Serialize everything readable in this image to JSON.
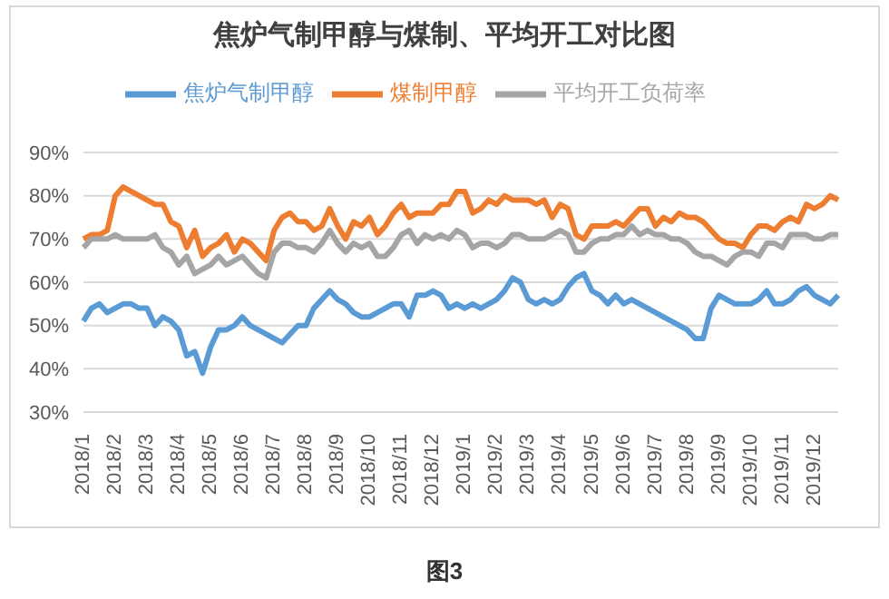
{
  "chart_data": {
    "type": "line",
    "title": "焦炉气制甲醇与煤制、平均开工对比图",
    "annotations": [
      "图3"
    ],
    "categories": [
      "2018/1",
      null,
      null,
      null,
      "2018/2",
      null,
      null,
      null,
      "2018/3",
      null,
      null,
      null,
      "2018/4",
      null,
      null,
      null,
      "2018/5",
      null,
      null,
      null,
      "2018/6",
      null,
      null,
      null,
      "2018/7",
      null,
      null,
      null,
      "2018/8",
      null,
      null,
      null,
      "2018/9",
      null,
      null,
      null,
      "2018/10",
      null,
      null,
      null,
      "2018/11",
      null,
      null,
      null,
      "2018/12",
      null,
      null,
      null,
      "2019/1",
      null,
      null,
      null,
      "2019/2",
      null,
      null,
      null,
      "2019/3",
      null,
      null,
      null,
      "2019/4",
      null,
      null,
      null,
      "2019/5",
      null,
      null,
      null,
      "2019/6",
      null,
      null,
      null,
      "2019/7",
      null,
      null,
      null,
      "2019/8",
      null,
      null,
      null,
      "2019/9",
      null,
      null,
      null,
      "2019/10",
      null,
      null,
      null,
      "2019/11",
      null,
      null,
      null,
      "2019/12",
      null,
      null,
      null
    ],
    "series": [
      {
        "name": "焦炉气制甲醇",
        "color": "#5b9bd5",
        "values": [
          51,
          54,
          55,
          53,
          54,
          55,
          55,
          54,
          54,
          50,
          52,
          51,
          49,
          43,
          44,
          39,
          45,
          49,
          49,
          50,
          52,
          50,
          49,
          48,
          47,
          46,
          48,
          50,
          50,
          54,
          56,
          58,
          56,
          55,
          53,
          52,
          52,
          53,
          54,
          55,
          55,
          52,
          57,
          57,
          58,
          57,
          54,
          55,
          54,
          55,
          54,
          55,
          56,
          58,
          61,
          60,
          56,
          55,
          56,
          55,
          56,
          59,
          61,
          62,
          58,
          57,
          55,
          57,
          55,
          56,
          55,
          54,
          53,
          52,
          51,
          50,
          49,
          47,
          47,
          54,
          57,
          56,
          55,
          55,
          55,
          56,
          58,
          55,
          55,
          56,
          58,
          59,
          57,
          56,
          55,
          57
        ]
      },
      {
        "name": "煤制甲醇",
        "color": "#ed7d31",
        "values": [
          70,
          71,
          71,
          72,
          80,
          82,
          81,
          80,
          79,
          78,
          78,
          74,
          73,
          68,
          72,
          66,
          68,
          69,
          71,
          67,
          70,
          69,
          67,
          65,
          72,
          75,
          76,
          74,
          74,
          72,
          73,
          77,
          73,
          70,
          74,
          73,
          75,
          71,
          73,
          76,
          78,
          75,
          76,
          76,
          76,
          78,
          78,
          81,
          81,
          76,
          77,
          79,
          78,
          80,
          79,
          79,
          79,
          78,
          79,
          75,
          78,
          77,
          71,
          70,
          73,
          73,
          73,
          74,
          73,
          75,
          77,
          77,
          73,
          75,
          74,
          76,
          75,
          75,
          74,
          72,
          70,
          69,
          69,
          68,
          71,
          73,
          73,
          72,
          74,
          75,
          74,
          78,
          77,
          78,
          80,
          79
        ]
      },
      {
        "name": "平均开工负荷率",
        "color": "#a5a5a5",
        "values": [
          68,
          70,
          70,
          70,
          71,
          70,
          70,
          70,
          70,
          71,
          68,
          67,
          64,
          66,
          62,
          63,
          64,
          66,
          64,
          65,
          66,
          64,
          62,
          61,
          67,
          69,
          69,
          68,
          68,
          67,
          69,
          72,
          69,
          67,
          69,
          68,
          69,
          66,
          66,
          68,
          71,
          72,
          69,
          71,
          70,
          71,
          70,
          72,
          71,
          68,
          69,
          69,
          68,
          69,
          71,
          71,
          70,
          70,
          70,
          71,
          72,
          71,
          67,
          67,
          69,
          70,
          70,
          71,
          71,
          73,
          71,
          72,
          71,
          71,
          70,
          70,
          69,
          67,
          66,
          66,
          65,
          64,
          66,
          67,
          67,
          66,
          69,
          69,
          68,
          71,
          71,
          71,
          70,
          70,
          71,
          71
        ]
      }
    ],
    "ylim": [
      30,
      90
    ],
    "yticks": [
      {
        "value": 30,
        "label": "30%"
      },
      {
        "value": 40,
        "label": "40%"
      },
      {
        "value": 50,
        "label": "50%"
      },
      {
        "value": 60,
        "label": "60%"
      },
      {
        "value": 70,
        "label": "70%"
      },
      {
        "value": 80,
        "label": "80%"
      },
      {
        "value": 90,
        "label": "90%"
      }
    ],
    "grid": "y",
    "legend": "top",
    "marker": "none",
    "line_style": "solid"
  }
}
